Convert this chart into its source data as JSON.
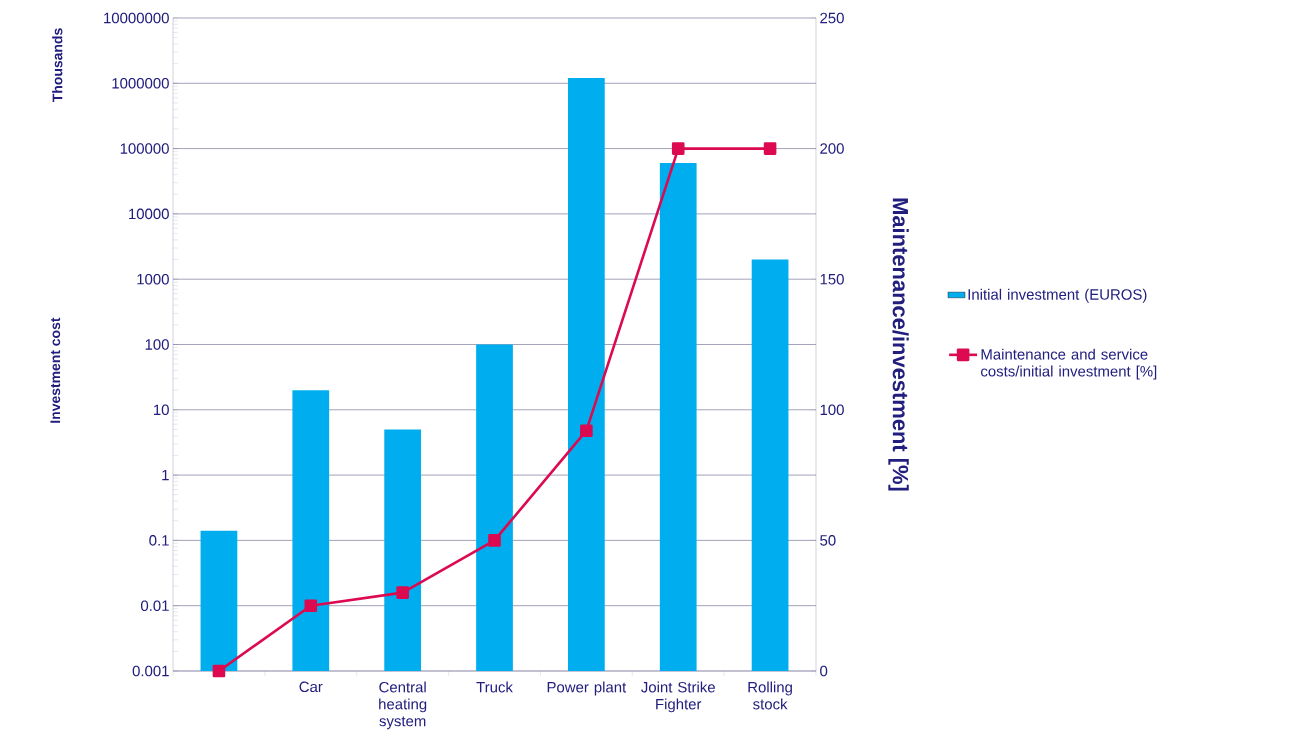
{
  "chart_data": {
    "type": "bar",
    "ylabel": "Investment cost",
    "y2label": "Maintenance/investment [%]",
    "annotations": [
      "Thousands"
    ],
    "categories": [
      null,
      "Car",
      "Central heating system",
      "Truck",
      "Power plant",
      "Joint Strike Fighter",
      "Rolling stock"
    ],
    "series": [
      {
        "name": "Initial investment (EUROS)",
        "color": "#00aeef",
        "values": [
          0.14,
          20,
          5,
          100,
          1200000,
          60000,
          2000
        ]
      },
      {
        "name": "Maintenance and service costs/initial investment [%]",
        "type": "line",
        "axis": "y2",
        "color": "#dc0a50",
        "values": [
          0,
          25,
          30,
          50,
          92,
          200,
          200
        ]
      }
    ],
    "log": "y",
    "ylim": [
      0.001,
      10000000
    ],
    "yticks": [
      0.001,
      0.01,
      0.1,
      1,
      10,
      100,
      1000,
      10000,
      100000,
      1000000,
      10000000
    ],
    "y2lim": [
      0,
      250
    ],
    "y2ticks": [
      0,
      50,
      100,
      150,
      200,
      250
    ],
    "grid": "y",
    "legend": "right",
    "marker": "square",
    "line_style": "solid"
  }
}
